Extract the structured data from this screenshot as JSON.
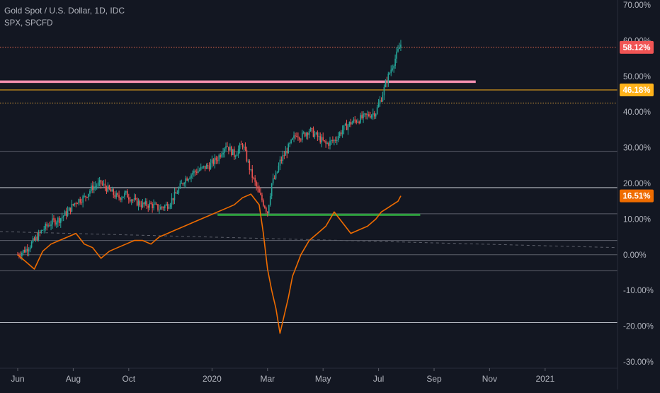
{
  "chart_data": {
    "type": "line",
    "title": "Gold Spot / U.S. Dollar, 1D, IDC",
    "subtitle": "SPX, SPCFD",
    "ylim": [
      -30,
      72
    ],
    "y_ticks": [
      {
        "value": 70,
        "label": "70.00%"
      },
      {
        "value": 60,
        "label": "60.00%"
      },
      {
        "value": 50,
        "label": "50.00%"
      },
      {
        "value": 40,
        "label": "40.00%"
      },
      {
        "value": 30,
        "label": "30.00%"
      },
      {
        "value": 20,
        "label": "20.00%"
      },
      {
        "value": 10,
        "label": "10.00%"
      },
      {
        "value": 0,
        "label": "0.00%"
      },
      {
        "value": -10,
        "label": "-10.00%"
      },
      {
        "value": -20,
        "label": "-20.00%"
      },
      {
        "value": -30,
        "label": "-30.00%"
      }
    ],
    "x_ticks": [
      "Jun",
      "Aug",
      "Oct",
      "2020",
      "Mar",
      "May",
      "Jul",
      "Sep",
      "Nov",
      "2021"
    ],
    "price_badges": [
      {
        "value": 58.12,
        "label": "58.12%",
        "color": "#f05454"
      },
      {
        "value": 46.18,
        "label": "46.18%",
        "color": "#ffb21a"
      },
      {
        "value": 16.51,
        "label": "16.51%",
        "color": "#ef6c00"
      }
    ],
    "horizontal_levels": [
      {
        "value": 58.12,
        "style": "dotted",
        "color": "#e8694f"
      },
      {
        "value": 48.5,
        "style": "solid-thick",
        "color": "#f48fb1",
        "end_month": 16.5
      },
      {
        "value": 46.18,
        "style": "solid",
        "color": "#ffb21a"
      },
      {
        "value": 42.5,
        "style": "dotted",
        "color": "#e0a13a"
      },
      {
        "value": 29.0,
        "style": "solid",
        "color": "#5d606b"
      },
      {
        "value": 18.8,
        "style": "solid",
        "color": "#d1d4dc"
      },
      {
        "value": 11.5,
        "style": "solid",
        "color": "#5d606b"
      },
      {
        "value": 4.0,
        "style": "solid",
        "color": "#5d606b"
      },
      {
        "value": 0.0,
        "style": "solid",
        "color": "#5d606b"
      },
      {
        "value": -4.5,
        "style": "solid",
        "color": "#5d606b"
      },
      {
        "value": -19.0,
        "style": "solid",
        "color": "#b2b5be"
      }
    ],
    "green_level": {
      "value": 11.2,
      "start_month": 7.2,
      "end_month": 14.5,
      "color": "#2e9e3e"
    },
    "trend_line": {
      "start": [
        -0.5,
        6.5
      ],
      "end": [
        17.5,
        2.0
      ],
      "color": "#5d606b"
    },
    "series": [
      {
        "name": "Gold Spot / U.S. Dollar",
        "render": "candles",
        "color_up": "#26a69a",
        "color_down": "#ef5350",
        "x_month": [
          0,
          0.3,
          0.6,
          0.9,
          1.2,
          1.5,
          1.8,
          2.1,
          2.4,
          2.7,
          3.0,
          3.3,
          3.6,
          3.9,
          4.2,
          4.5,
          4.8,
          5.1,
          5.4,
          5.7,
          6.0,
          6.3,
          6.6,
          6.9,
          7.2,
          7.5,
          7.8,
          8.1,
          8.4,
          8.7,
          9.0,
          9.15,
          9.3,
          9.45,
          9.6,
          9.75,
          9.9,
          10.05,
          10.2,
          10.35,
          10.5,
          10.8,
          11.1,
          11.4,
          11.7,
          12.0,
          12.3,
          12.6,
          12.9,
          13.1,
          13.3,
          13.5,
          13.7,
          13.8
        ],
        "values": [
          0,
          1.5,
          4,
          7,
          9,
          10,
          12,
          15,
          16,
          19,
          20,
          18,
          16,
          17,
          15,
          14,
          14,
          13,
          14,
          17,
          21,
          23,
          24,
          25,
          27,
          31,
          28,
          31,
          23,
          17,
          12,
          20,
          22,
          26,
          28,
          30,
          32,
          34,
          33,
          34,
          35,
          33,
          31,
          32,
          35,
          37,
          38,
          39,
          40,
          44,
          49,
          53,
          57,
          59
        ]
      },
      {
        "name": "SPX",
        "render": "line",
        "color": "#ef6c00",
        "x_month": [
          0,
          0.3,
          0.6,
          0.9,
          1.2,
          1.5,
          1.8,
          2.1,
          2.4,
          2.7,
          3.0,
          3.3,
          3.6,
          3.9,
          4.2,
          4.5,
          4.8,
          5.1,
          5.4,
          5.7,
          6.0,
          6.3,
          6.6,
          6.9,
          7.2,
          7.5,
          7.8,
          8.1,
          8.4,
          8.7,
          8.85,
          9.0,
          9.15,
          9.3,
          9.45,
          9.6,
          9.75,
          9.9,
          10.05,
          10.2,
          10.35,
          10.5,
          10.8,
          11.1,
          11.4,
          11.7,
          12.0,
          12.3,
          12.6,
          12.9,
          13.1,
          13.3,
          13.5,
          13.7,
          13.8
        ],
        "values": [
          0,
          -2,
          -4,
          1,
          3,
          4,
          5,
          6,
          3,
          2,
          -1,
          1,
          2,
          3,
          4,
          4,
          3,
          5,
          6,
          7,
          8,
          9,
          10,
          11,
          12,
          13,
          14,
          16,
          17,
          14,
          6,
          -4,
          -10,
          -15,
          -22,
          -17,
          -12,
          -6,
          -3,
          0,
          2,
          4,
          6,
          8,
          12,
          9,
          6,
          7,
          8,
          10,
          12,
          13,
          14,
          15,
          16.5
        ]
      }
    ]
  }
}
